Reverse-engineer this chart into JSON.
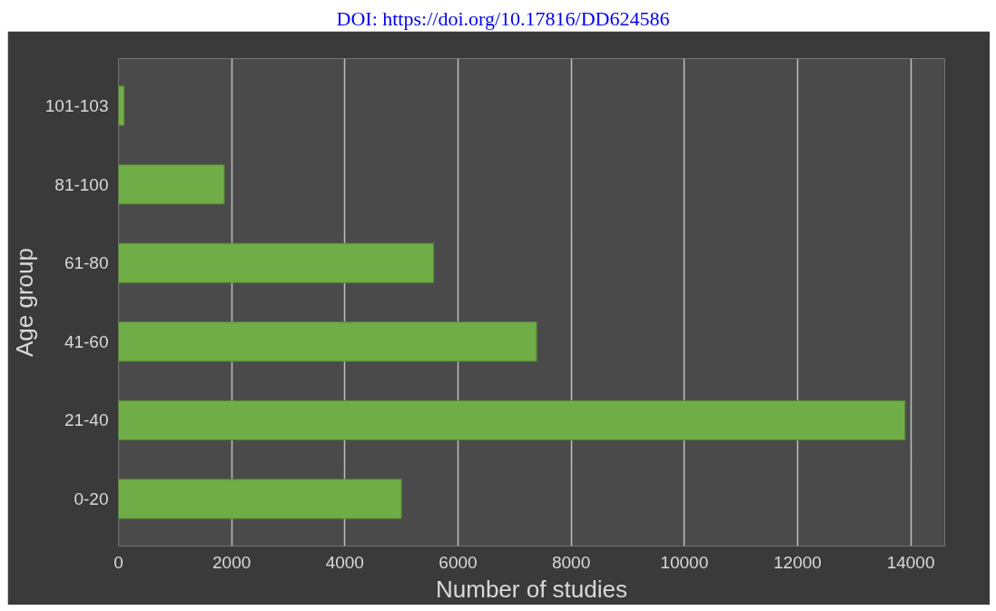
{
  "chart_data": {
    "type": "bar",
    "orientation": "horizontal",
    "xlabel": "Number of studies",
    "ylabel": "Age group",
    "annotations": [
      "DOI: https://doi.org/10.17816/DD624586"
    ],
    "categories": [
      "101-103",
      "81-100",
      "61-80",
      "41-60",
      "21-40",
      "0-20"
    ],
    "values": [
      100,
      1870,
      5570,
      7390,
      13900,
      5000
    ],
    "color": "#70ad47",
    "xlim": [
      0,
      14600
    ],
    "xticks": [
      0,
      2000,
      4000,
      6000,
      8000,
      10000,
      12000,
      14000
    ],
    "grid": "x"
  }
}
